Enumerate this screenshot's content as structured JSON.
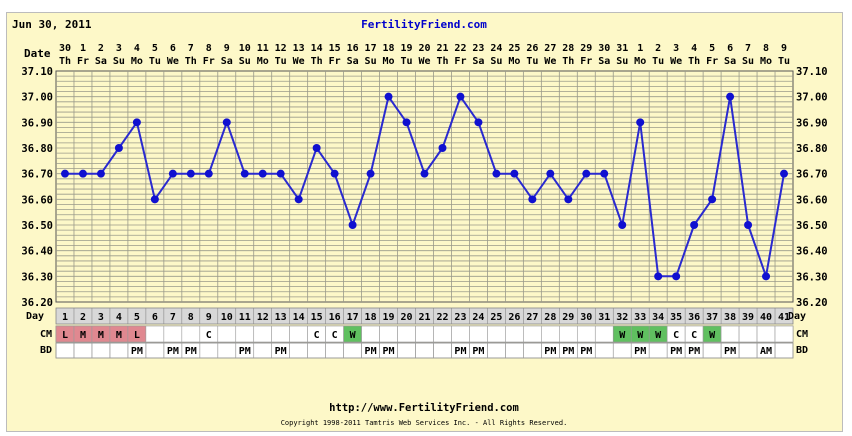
{
  "header": {
    "date": "Jun 30, 2011",
    "site": "FertilityFriend.com",
    "date_row_label": "Date"
  },
  "footer": {
    "url": "http://www.FertilityFriend.com",
    "copyright": "Copyright 1998-2011 Tamtris Web Services Inc. - All Rights Reserved."
  },
  "row_labels": {
    "day": "Day",
    "cm": "CM",
    "bd": "BD"
  },
  "colors": {
    "background": "#fdf8c8",
    "line": "#2a2ad0",
    "point": "#1010d0",
    "grid": "#9a9a8a",
    "day_row": "#d8d8d8",
    "cm_L": "#e08890",
    "cm_M": "#e08890",
    "cm_W": "#60c060",
    "cm_C": "#ffffff",
    "site": "#0000cc"
  },
  "chart_data": {
    "type": "line",
    "title": "",
    "ylabel": "",
    "ylim": [
      36.2,
      37.1
    ],
    "yticks": [
      "37.10",
      "37.00",
      "36.90",
      "36.80",
      "36.70",
      "36.60",
      "36.50",
      "36.40",
      "36.30",
      "36.20"
    ],
    "grid": true,
    "dates": [
      "30",
      "1",
      "2",
      "3",
      "4",
      "5",
      "6",
      "7",
      "8",
      "9",
      "10",
      "11",
      "12",
      "13",
      "14",
      "15",
      "16",
      "17",
      "18",
      "19",
      "20",
      "21",
      "22",
      "23",
      "24",
      "25",
      "26",
      "27",
      "28",
      "29",
      "30",
      "31",
      "1",
      "2",
      "3",
      "4",
      "5",
      "6",
      "7",
      "8",
      "9"
    ],
    "weekdays": [
      "Th",
      "Fr",
      "Sa",
      "Su",
      "Mo",
      "Tu",
      "We",
      "Th",
      "Fr",
      "Sa",
      "Su",
      "Mo",
      "Tu",
      "We",
      "Th",
      "Fr",
      "Sa",
      "Su",
      "Mo",
      "Tu",
      "We",
      "Th",
      "Fr",
      "Sa",
      "Su",
      "Mo",
      "Tu",
      "We",
      "Th",
      "Fr",
      "Sa",
      "Su",
      "Mo",
      "Tu",
      "We",
      "Th",
      "Fr",
      "Sa",
      "Su",
      "Mo",
      "Tu"
    ],
    "days": [
      "1",
      "2",
      "3",
      "4",
      "5",
      "6",
      "7",
      "8",
      "9",
      "10",
      "11",
      "12",
      "13",
      "14",
      "15",
      "16",
      "17",
      "18",
      "19",
      "20",
      "21",
      "22",
      "23",
      "24",
      "25",
      "26",
      "27",
      "28",
      "29",
      "30",
      "31",
      "32",
      "33",
      "34",
      "35",
      "36",
      "37",
      "38",
      "39",
      "40",
      "41"
    ],
    "temps": [
      36.7,
      36.7,
      36.7,
      36.8,
      36.9,
      36.6,
      36.7,
      36.7,
      36.7,
      36.9,
      36.7,
      36.7,
      36.7,
      36.6,
      36.8,
      36.7,
      36.5,
      36.7,
      37.0,
      36.9,
      36.7,
      36.8,
      37.0,
      36.9,
      36.7,
      36.7,
      36.6,
      36.7,
      36.6,
      36.7,
      36.7,
      36.5,
      36.9,
      36.3,
      36.3,
      36.5,
      36.6,
      37.0,
      36.5,
      36.3,
      36.7
    ],
    "cm": [
      "L",
      "M",
      "M",
      "M",
      "L",
      "",
      "",
      "",
      "C",
      "",
      "",
      "",
      "",
      "",
      "C",
      "C",
      "W",
      "",
      "",
      "",
      "",
      "",
      "",
      "",
      "",
      "",
      "",
      "",
      "",
      "",
      "",
      "W",
      "W",
      "W",
      "C",
      "C",
      "W",
      "",
      "",
      "",
      ""
    ],
    "bd": [
      "",
      "",
      "",
      "",
      "PM",
      "",
      "PM",
      "PM",
      "",
      "",
      "PM",
      "",
      "PM",
      "",
      "",
      "",
      "",
      "PM",
      "PM",
      "",
      "",
      "",
      "PM",
      "PM",
      "",
      "",
      "",
      "PM",
      "PM",
      "PM",
      "",
      "",
      "PM",
      "",
      "PM",
      "PM",
      "",
      "PM",
      "",
      "AM",
      ""
    ]
  }
}
